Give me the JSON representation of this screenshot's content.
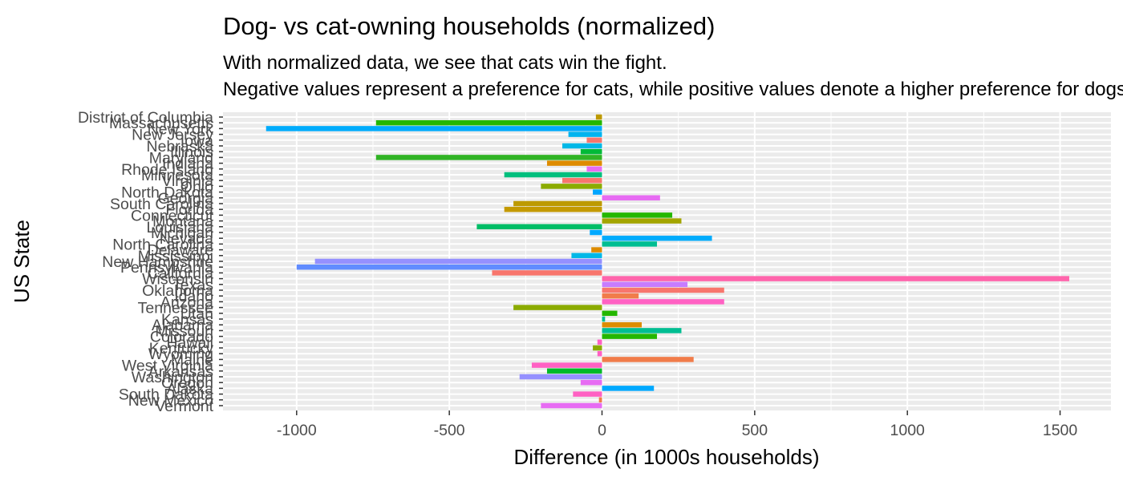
{
  "chart_data": {
    "type": "bar",
    "orientation": "horizontal",
    "title": "Dog- vs cat-owning households (normalized)",
    "subtitle_lines": [
      "With normalized data, we see that cats win the fight.",
      "Negative values represent a preference for cats, while positive values denote a higher preference for dogs."
    ],
    "xlabel": "Difference (in 1000s households)",
    "ylabel": "US State",
    "xlim": [
      -1260,
      1670
    ],
    "xticks": [
      -1000,
      -500,
      0,
      500,
      1000,
      1500
    ],
    "xtick_labels": [
      "-1000",
      "-500",
      "0",
      "500",
      "1000",
      "1500"
    ],
    "grid": true,
    "legend": "none",
    "categories": [
      "District of Columbia",
      "Massachusetts",
      "New York",
      "New Jersey",
      "Iowa",
      "Nebraska",
      "Illinois",
      "Maryland",
      "Indiana",
      "Rhode Island",
      "Minnesota",
      "Virginia",
      "Ohio",
      "North Dakota",
      "Georgia",
      "South Carolina",
      "Florida",
      "Connecticut",
      "Montana",
      "Louisiana",
      "Michigan",
      "Nevada",
      "North Carolina",
      "Delaware",
      "Mississippi",
      "New Hampshire",
      "Pennsylvania",
      "California",
      "Wisconsin",
      "Texas",
      "Oklahoma",
      "Idaho",
      "Arizona",
      "Tennessee",
      "Utah",
      "Kansas",
      "Alabama",
      "Missouri",
      "Colorado",
      "Hawaii",
      "Kentucky",
      "Wyoming",
      "Maine",
      "West Virginia",
      "Arkansas",
      "Washington",
      "Oregon",
      "Alaska",
      "South Dakota",
      "New Mexico",
      "Vermont"
    ],
    "values": [
      -20,
      -740,
      -1100,
      -110,
      -50,
      -130,
      -70,
      -740,
      -180,
      -50,
      -320,
      -130,
      -200,
      -30,
      190,
      -290,
      -320,
      230,
      260,
      -410,
      -40,
      360,
      180,
      -35,
      -100,
      -940,
      -1000,
      -360,
      1530,
      280,
      400,
      120,
      400,
      -290,
      50,
      10,
      130,
      260,
      180,
      -15,
      -30,
      -15,
      300,
      -230,
      -180,
      -270,
      -70,
      170,
      -95,
      -10,
      -200
    ],
    "colors": [
      "#BD9A00",
      "#24B700",
      "#00ACFC",
      "#00B4EF",
      "#F8766D",
      "#00B8E7",
      "#00BA38",
      "#31B425",
      "#DE8C00",
      "#E76BF3",
      "#00BF7D",
      "#F8766D",
      "#8BAB00",
      "#00A5FF",
      "#E76BF3",
      "#BD9A00",
      "#C49A00",
      "#24B700",
      "#A3A500",
      "#00BE67",
      "#00A9FF",
      "#00ACFC",
      "#00BE92",
      "#DE8C00",
      "#00B8E7",
      "#9590FF",
      "#618CFF",
      "#F8766D",
      "#FF65AC",
      "#C77CFF",
      "#F8766D",
      "#F17C4A",
      "#FF61C3",
      "#8BAB00",
      "#24B700",
      "#00BF8D",
      "#DE8C00",
      "#00BE92",
      "#24B700",
      "#FF61C3",
      "#8BAB00",
      "#FF61C3",
      "#F17C4A",
      "#FF61C3",
      "#00B929",
      "#9590FF",
      "#E76BF3",
      "#00A9FF",
      "#FF61C3",
      "#F17C4A",
      "#E76BF3"
    ]
  }
}
